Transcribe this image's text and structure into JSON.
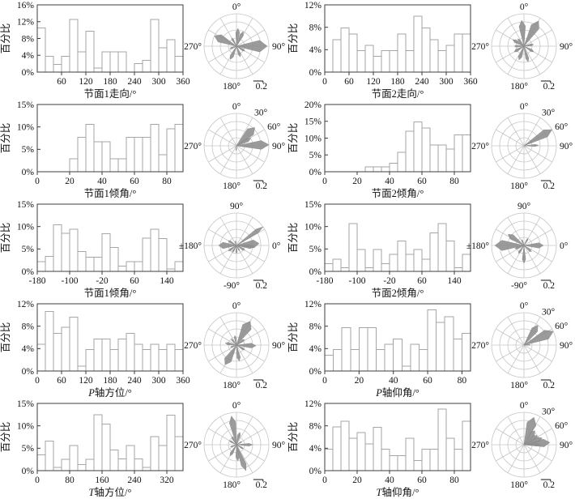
{
  "colors": {
    "background": "#ffffff",
    "axis": "#3c3c3c",
    "text": "#111111",
    "bar_fill": "#ffffff",
    "bar_border": "#a6a6a6",
    "rose_fill": "#8d8d8d",
    "rose_grid": "#c6c6c6"
  },
  "rose_label_sets": {
    "azimuth": [
      {
        "a": 0,
        "t": "0°"
      },
      {
        "a": 90,
        "t": "90°"
      },
      {
        "a": 180,
        "t": "180°"
      },
      {
        "a": 270,
        "t": "270°"
      }
    ],
    "dip": [
      {
        "a": 0,
        "t": "0°"
      },
      {
        "a": 30,
        "t": "30°"
      },
      {
        "a": 60,
        "t": "60°"
      },
      {
        "a": 90,
        "t": "90°"
      },
      {
        "a": 180,
        "t": "180°"
      },
      {
        "a": 270,
        "t": "270°"
      }
    ],
    "rake": [
      {
        "a": 0,
        "t": "90°"
      },
      {
        "a": 90,
        "t": "0°"
      },
      {
        "a": 180,
        "t": "-90°"
      },
      {
        "a": 270,
        "t": "±180°"
      }
    ]
  },
  "chart_data": {
    "type": "bar",
    "note_unit": "%",
    "rows": [
      {
        "left": {
          "hist": {
            "type": "bar",
            "ylabel": "百分比",
            "xlabel": "节面1走向/°",
            "ymax": 16,
            "yticks": [
              0,
              4,
              8,
              12,
              16
            ],
            "xmin": 0,
            "xmax": 360,
            "xticks": [
              60,
              120,
              180,
              240,
              300,
              360
            ],
            "values": [
              10.5,
              3.8,
              1.8,
              3.8,
              12.5,
              4.8,
              9.7,
              1.0,
              4.8,
              4.8,
              4.8,
              0,
              2.0,
              2.8,
              12.5,
              5.8,
              7.7,
              3.8
            ]
          },
          "rose": {
            "labels": "azimuth",
            "scale_label": "0.2",
            "petals": [
              [
                5,
                0.55,
                8
              ],
              [
                25,
                0.5,
                8
              ],
              [
                90,
                0.95,
                14
              ],
              [
                120,
                0.3,
                8
              ],
              [
                160,
                0.35,
                8
              ],
              [
                205,
                0.45,
                9
              ],
              [
                250,
                0.22,
                7
              ],
              [
                295,
                0.75,
                12
              ],
              [
                330,
                0.3,
                7
              ]
            ]
          }
        },
        "right": {
          "hist": {
            "type": "bar",
            "ylabel": "百分比",
            "xlabel": "节面2走向/°",
            "ymax": 12,
            "yticks": [
              0,
              4,
              8,
              12
            ],
            "xmin": 0,
            "xmax": 360,
            "xticks": [
              0,
              60,
              120,
              180,
              240,
              300,
              360
            ],
            "values": [
              0,
              5.8,
              7.9,
              6.8,
              3.8,
              4.8,
              2.8,
              3.8,
              3.8,
              6.8,
              3.8,
              10.0,
              7.9,
              5.8,
              3.8,
              4.8,
              6.8,
              6.8
            ]
          },
          "rose": {
            "labels": "azimuth",
            "scale_label": "0.2",
            "petals": [
              [
                355,
                0.8,
                9
              ],
              [
                30,
                0.9,
                11
              ],
              [
                80,
                0.3,
                8
              ],
              [
                120,
                0.35,
                8
              ],
              [
                165,
                0.5,
                7
              ],
              [
                200,
                0.45,
                9
              ],
              [
                240,
                0.35,
                9
              ],
              [
                270,
                0.3,
                8
              ],
              [
                300,
                0.4,
                9
              ],
              [
                320,
                0.3,
                7
              ]
            ]
          }
        }
      },
      {
        "left": {
          "hist": {
            "type": "bar",
            "ylabel": "百分比",
            "xlabel": "节面1倾角/°",
            "ymax": 15,
            "yticks": [
              0,
              5,
              10,
              15
            ],
            "xmin": 0,
            "xmax": 90,
            "xticks": [
              0,
              20,
              40,
              60,
              80
            ],
            "values": [
              0,
              0,
              0,
              0,
              2.9,
              7.7,
              10.6,
              6.7,
              6.7,
              2.9,
              2.9,
              7.7,
              7.7,
              7.7,
              10.6,
              3.8,
              9.6,
              10.6
            ]
          },
          "rose": {
            "labels": "dip",
            "scale_label": "0.2",
            "petals": [
              [
                45,
                0.8,
                12
              ],
              [
                62,
                0.5,
                9
              ],
              [
                88,
                1.0,
                10
              ],
              [
                185,
                0.15,
                6
              ]
            ]
          }
        },
        "right": {
          "hist": {
            "type": "bar",
            "ylabel": "百分比",
            "xlabel": "节面2倾角/°",
            "ymax": 20,
            "yticks": [
              0,
              5,
              10,
              15,
              20
            ],
            "xmin": 0,
            "xmax": 90,
            "xticks": [
              0,
              20,
              40,
              60,
              80
            ],
            "values": [
              0,
              0,
              0,
              0,
              0,
              1.5,
              1.5,
              1.5,
              2.5,
              5.8,
              12.0,
              14.8,
              13.0,
              8.0,
              8.0,
              6.7,
              11.0,
              11.0
            ]
          },
          "rose": {
            "labels": "dip",
            "scale_label": "0.2",
            "petals": [
              [
                60,
                1.0,
                9
              ],
              [
                88,
                0.45,
                5
              ]
            ]
          }
        }
      },
      {
        "left": {
          "hist": {
            "type": "bar",
            "ylabel": "百分比",
            "xlabel": "节面1倾角/°",
            "ymax": 15,
            "yticks": [
              0,
              5,
              10,
              15
            ],
            "xmin": -180,
            "xmax": 180,
            "xticks": [
              -180,
              -100,
              -20,
              60,
              140
            ],
            "values": [
              2.2,
              3.3,
              10.4,
              8.5,
              9.4,
              4.4,
              3.2,
              3.2,
              8.4,
              5.3,
              1.2,
              2.2,
              2.2,
              7.4,
              9.4,
              7.3,
              0.5,
              2.2
            ]
          },
          "rose": {
            "labels": "rake",
            "scale_label": "0.2",
            "petals": [
              [
                55,
                1.0,
                5
              ],
              [
                85,
                0.7,
                13
              ],
              [
                95,
                0.55,
                8
              ],
              [
                120,
                0.3,
                8
              ],
              [
                150,
                0.2,
                7
              ],
              [
                180,
                0.25,
                7
              ],
              [
                210,
                0.25,
                7
              ],
              [
                235,
                0.3,
                8
              ],
              [
                270,
                0.55,
                13
              ],
              [
                300,
                0.3,
                8
              ],
              [
                345,
                0.15,
                6
              ]
            ]
          }
        },
        "right": {
          "hist": {
            "type": "bar",
            "ylabel": "百分比",
            "xlabel": "节面2倾角/°",
            "ymax": 15,
            "yticks": [
              0,
              5,
              10,
              15
            ],
            "xmin": -180,
            "xmax": 180,
            "xticks": [
              -180,
              -100,
              -20,
              60,
              140
            ],
            "values": [
              1.7,
              2.7,
              0.8,
              10.7,
              4.9,
              0.8,
              4.9,
              1.7,
              3.8,
              6.8,
              3.8,
              4.9,
              2.7,
              8.6,
              10.7,
              6.8,
              0.8,
              3.8
            ]
          },
          "rose": {
            "labels": "rake",
            "scale_label": "0.2",
            "petals": [
              [
                30,
                0.25,
                7
              ],
              [
                90,
                0.6,
                10
              ],
              [
                130,
                0.3,
                8
              ],
              [
                180,
                0.55,
                7
              ],
              [
                215,
                0.3,
                8
              ],
              [
                250,
                0.3,
                8
              ],
              [
                270,
                0.9,
                13
              ],
              [
                305,
                0.6,
                10
              ],
              [
                340,
                0.2,
                6
              ]
            ]
          }
        }
      },
      {
        "left": {
          "hist": {
            "type": "bar",
            "ylabel": "百分比",
            "xlabel": "P轴方位/°",
            "ymax": 12,
            "yticks": [
              0,
              4,
              8,
              12
            ],
            "xmin": 0,
            "xmax": 360,
            "xticks": [
              0,
              60,
              120,
              180,
              240,
              300,
              360
            ],
            "values": [
              4.8,
              10.6,
              6.7,
              7.8,
              9.6,
              0.9,
              3.8,
              5.7,
              5.7,
              3.8,
              5.7,
              6.7,
              4.8,
              3.8,
              4.8,
              3.8,
              4.8,
              3.8
            ]
          },
          "rose": {
            "labels": "azimuth",
            "scale_label": "0.2",
            "petals": [
              [
                30,
                0.85,
                13
              ],
              [
                55,
                0.3,
                8
              ],
              [
                92,
                0.6,
                9
              ],
              [
                120,
                0.3,
                8
              ],
              [
                170,
                0.5,
                8
              ],
              [
                210,
                0.7,
                12
              ],
              [
                250,
                0.2,
                7
              ],
              [
                280,
                0.35,
                8
              ],
              [
                320,
                0.25,
                7
              ],
              [
                350,
                0.3,
                7
              ]
            ]
          }
        },
        "right": {
          "hist": {
            "type": "bar",
            "ylabel": "百分比",
            "xlabel": "P轴仰角/°",
            "ymax": 12,
            "yticks": [
              0,
              4,
              8,
              12
            ],
            "xmin": 0,
            "xmax": 85,
            "xticks": [
              0,
              20,
              40,
              60,
              80
            ],
            "values": [
              2.8,
              3.8,
              7.7,
              3.8,
              7.7,
              7.7,
              3.8,
              4.8,
              5.7,
              0.9,
              4.8,
              3.8,
              10.9,
              8.7,
              9.7,
              5.7,
              6.7
            ]
          },
          "rose": {
            "labels": "dip",
            "scale_label": "0.2",
            "petals": [
              [
                35,
                0.75,
                10
              ],
              [
                65,
                1.0,
                11
              ],
              [
                88,
                0.2,
                5
              ]
            ]
          }
        }
      },
      {
        "left": {
          "hist": {
            "type": "bar",
            "ylabel": "百分比",
            "xlabel": "T轴方位/°",
            "ymax": 15,
            "yticks": [
              0,
              5,
              10,
              15
            ],
            "xmin": 0,
            "xmax": 360,
            "xticks": [
              0,
              80,
              160,
              240,
              320
            ],
            "values": [
              3.5,
              6.6,
              0.7,
              2.5,
              5.6,
              1.4,
              2.5,
              12.5,
              10.4,
              4.6,
              2.6,
              5.6,
              2.6,
              0.7,
              7.6,
              5.6,
              12.4,
              7.6
            ]
          },
          "rose": {
            "labels": "azimuth",
            "scale_label": "0.2",
            "petals": [
              [
                350,
                0.9,
                8
              ],
              [
                15,
                0.4,
                8
              ],
              [
                60,
                0.2,
                6
              ],
              [
                90,
                0.5,
                6
              ],
              [
                120,
                0.25,
                7
              ],
              [
                160,
                0.85,
                7
              ],
              [
                175,
                0.5,
                8
              ],
              [
                210,
                0.4,
                8
              ],
              [
                250,
                0.2,
                6
              ],
              [
                300,
                0.25,
                7
              ],
              [
                330,
                0.3,
                7
              ]
            ]
          }
        },
        "right": {
          "hist": {
            "type": "bar",
            "ylabel": "百分比",
            "xlabel": "T轴仰角/°",
            "ymax": 12,
            "yticks": [
              0,
              4,
              8,
              12
            ],
            "xmin": 0,
            "xmax": 90,
            "xticks": [
              0,
              20,
              40,
              60,
              80
            ],
            "values": [
              3.8,
              7.8,
              8.8,
              5.8,
              6.8,
              4.8,
              7.7,
              3.8,
              2.7,
              2.7,
              5.8,
              1.8,
              3.8,
              3.8,
              11.0,
              5.8,
              3.8,
              8.8
            ]
          },
          "rose": {
            "labels": "dip",
            "scale_label": "0.2",
            "petals": [
              [
                20,
                0.9,
                12
              ],
              [
                38,
                0.55,
                10
              ],
              [
                55,
                0.5,
                10
              ],
              [
                70,
                0.6,
                10
              ],
              [
                85,
                0.8,
                11
              ],
              [
                90,
                0.5,
                6
              ]
            ]
          }
        }
      }
    ]
  }
}
